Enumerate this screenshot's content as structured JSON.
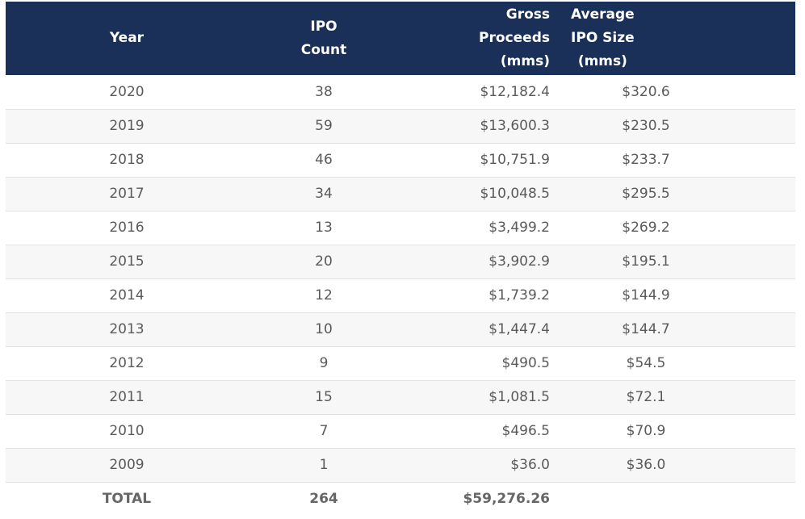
{
  "table": {
    "headers": {
      "year": "Year",
      "count": [
        "IPO",
        "Count"
      ],
      "gross": [
        "Gross",
        "Proceeds",
        "(mms)"
      ],
      "avg": [
        "Average",
        "IPO Size",
        "(mms)"
      ]
    },
    "rows": [
      {
        "year": "2020",
        "count": "38",
        "gross": "$12,182.4",
        "avg": "$320.6"
      },
      {
        "year": "2019",
        "count": "59",
        "gross": "$13,600.3",
        "avg": "$230.5"
      },
      {
        "year": "2018",
        "count": "46",
        "gross": "$10,751.9",
        "avg": "$233.7"
      },
      {
        "year": "2017",
        "count": "34",
        "gross": "$10,048.5",
        "avg": "$295.5"
      },
      {
        "year": "2016",
        "count": "13",
        "gross": "$3,499.2",
        "avg": "$269.2"
      },
      {
        "year": "2015",
        "count": "20",
        "gross": "$3,902.9",
        "avg": "$195.1"
      },
      {
        "year": "2014",
        "count": "12",
        "gross": "$1,739.2",
        "avg": "$144.9"
      },
      {
        "year": "2013",
        "count": "10",
        "gross": "$1,447.4",
        "avg": "$144.7"
      },
      {
        "year": "2012",
        "count": "9",
        "gross": "$490.5",
        "avg": "$54.5"
      },
      {
        "year": "2011",
        "count": "15",
        "gross": "$1,081.5",
        "avg": "$72.1"
      },
      {
        "year": "2010",
        "count": "7",
        "gross": "$496.5",
        "avg": "$70.9"
      },
      {
        "year": "2009",
        "count": "1",
        "gross": "$36.0",
        "avg": "$36.0"
      }
    ],
    "total": {
      "label": "TOTAL",
      "count": "264",
      "gross": "$59,276.26",
      "avg": ""
    }
  },
  "colors": {
    "header_bg": "#1b3059",
    "header_text": "#ffffff",
    "row_alt": "#f7f7f7",
    "text": "#5a5a5a"
  }
}
